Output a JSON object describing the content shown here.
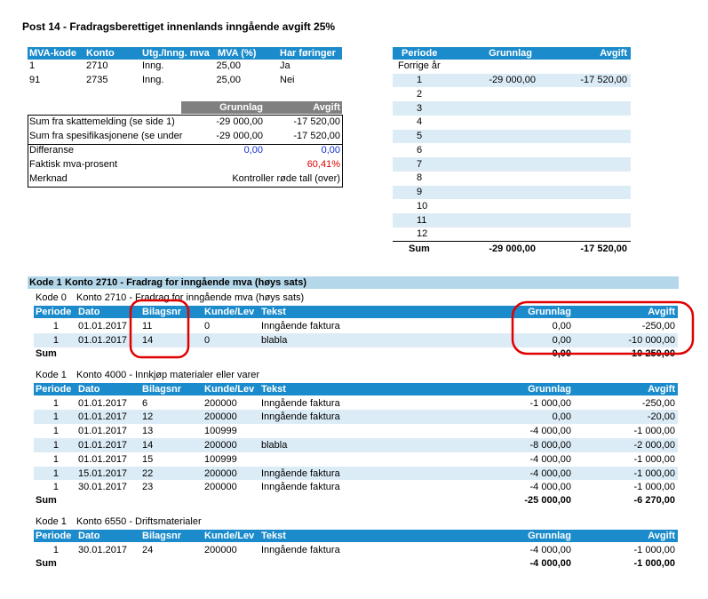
{
  "title": "Post 14 - Fradragsberettiget innenlands inngående avgift 25%",
  "codes_table": {
    "columns": [
      "MVA-kode",
      "Konto",
      "Utg./Inng. mva",
      "MVA (%)",
      "Har føringer"
    ],
    "rows": [
      [
        "1",
        "2710",
        "Inng.",
        "25,00",
        "Ja"
      ],
      [
        "91",
        "2735",
        "Inng.",
        "25,00",
        "Nei"
      ]
    ]
  },
  "summary": {
    "columns": [
      "Grunnlag",
      "Avgift"
    ],
    "rows": [
      {
        "label": "Sum fra skattemelding (se side 1)",
        "grunnlag": "-29 000,00",
        "avgift": "-17 520,00"
      },
      {
        "label": "Sum fra spesifikasjonene (se under",
        "grunnlag": "-29 000,00",
        "avgift": "-17 520,00"
      },
      {
        "label": "Differanse",
        "grunnlag": "0,00",
        "avgift": "0,00"
      },
      {
        "label": "Faktisk mva-prosent",
        "avgift": "60,41%"
      }
    ],
    "merknad": {
      "label": "Merknad",
      "value": "Kontroller røde tall (over)"
    }
  },
  "periods": {
    "columns": [
      "Periode",
      "Grunnlag",
      "Avgift"
    ],
    "previous_year": "Forrige år",
    "rows": [
      {
        "periode": "1",
        "grunnlag": "-29 000,00",
        "avgift": "-17 520,00"
      },
      {
        "periode": "2"
      },
      {
        "periode": "3"
      },
      {
        "periode": "4"
      },
      {
        "periode": "5"
      },
      {
        "periode": "6"
      },
      {
        "periode": "7"
      },
      {
        "periode": "8"
      },
      {
        "periode": "9"
      },
      {
        "periode": "10"
      },
      {
        "periode": "11"
      },
      {
        "periode": "12"
      }
    ],
    "sum": {
      "label": "Sum",
      "grunnlag": "-29 000,00",
      "avgift": "-17 520,00"
    }
  },
  "section": {
    "kode": "Kode 1",
    "konto": "Konto 2710 - Fradrag for inngående mva (høys sats)"
  },
  "detail": {
    "columns": [
      "Periode",
      "Dato",
      "Bilagsnr",
      "Kunde/Lev",
      "Tekst",
      "Grunnlag",
      "Avgift"
    ],
    "sum_label": "Sum",
    "groups": [
      {
        "kode": "Kode 0",
        "konto": "Konto 2710 - Fradrag for inngående mva (høys sats)",
        "rows": [
          [
            "1",
            "01.01.2017",
            "11",
            "0",
            "Inngående faktura",
            "0,00",
            "-250,00"
          ],
          [
            "1",
            "01.01.2017",
            "14",
            "0",
            "blabla",
            "0,00",
            "-10 000,00"
          ]
        ],
        "sum": {
          "grunnlag": "0,00",
          "avgift": "-10 250,00"
        }
      },
      {
        "kode": "Kode 1",
        "konto": "Konto 4000 - Innkjøp materialer eller varer",
        "rows": [
          [
            "1",
            "01.01.2017",
            "6",
            "200000",
            "Inngående faktura",
            "-1 000,00",
            "-250,00"
          ],
          [
            "1",
            "01.01.2017",
            "12",
            "200000",
            "Inngående faktura",
            "0,00",
            "-20,00"
          ],
          [
            "1",
            "01.01.2017",
            "13",
            "100999",
            null,
            "-4 000,00",
            "-1 000,00"
          ],
          [
            "1",
            "01.01.2017",
            "14",
            "200000",
            "blabla",
            "-8 000,00",
            "-2 000,00"
          ],
          [
            "1",
            "01.01.2017",
            "15",
            "100999",
            null,
            "-4 000,00",
            "-1 000,00"
          ],
          [
            "1",
            "15.01.2017",
            "22",
            "200000",
            "Inngående faktura",
            "-4 000,00",
            "-1 000,00"
          ],
          [
            "1",
            "30.01.2017",
            "23",
            "200000",
            "Inngående faktura",
            "-4 000,00",
            "-1 000,00"
          ]
        ],
        "sum": {
          "grunnlag": "-25 000,00",
          "avgift": "-6 270,00"
        }
      },
      {
        "kode": "Kode 1",
        "konto": "Konto 6550 - Driftsmaterialer",
        "rows": [
          [
            "1",
            "30.01.2017",
            "24",
            "200000",
            "Inngående faktura",
            "-4 000,00",
            "-1 000,00"
          ]
        ],
        "sum": {
          "grunnlag": "-4 000,00",
          "avgift": "-1 000,00"
        }
      }
    ]
  }
}
